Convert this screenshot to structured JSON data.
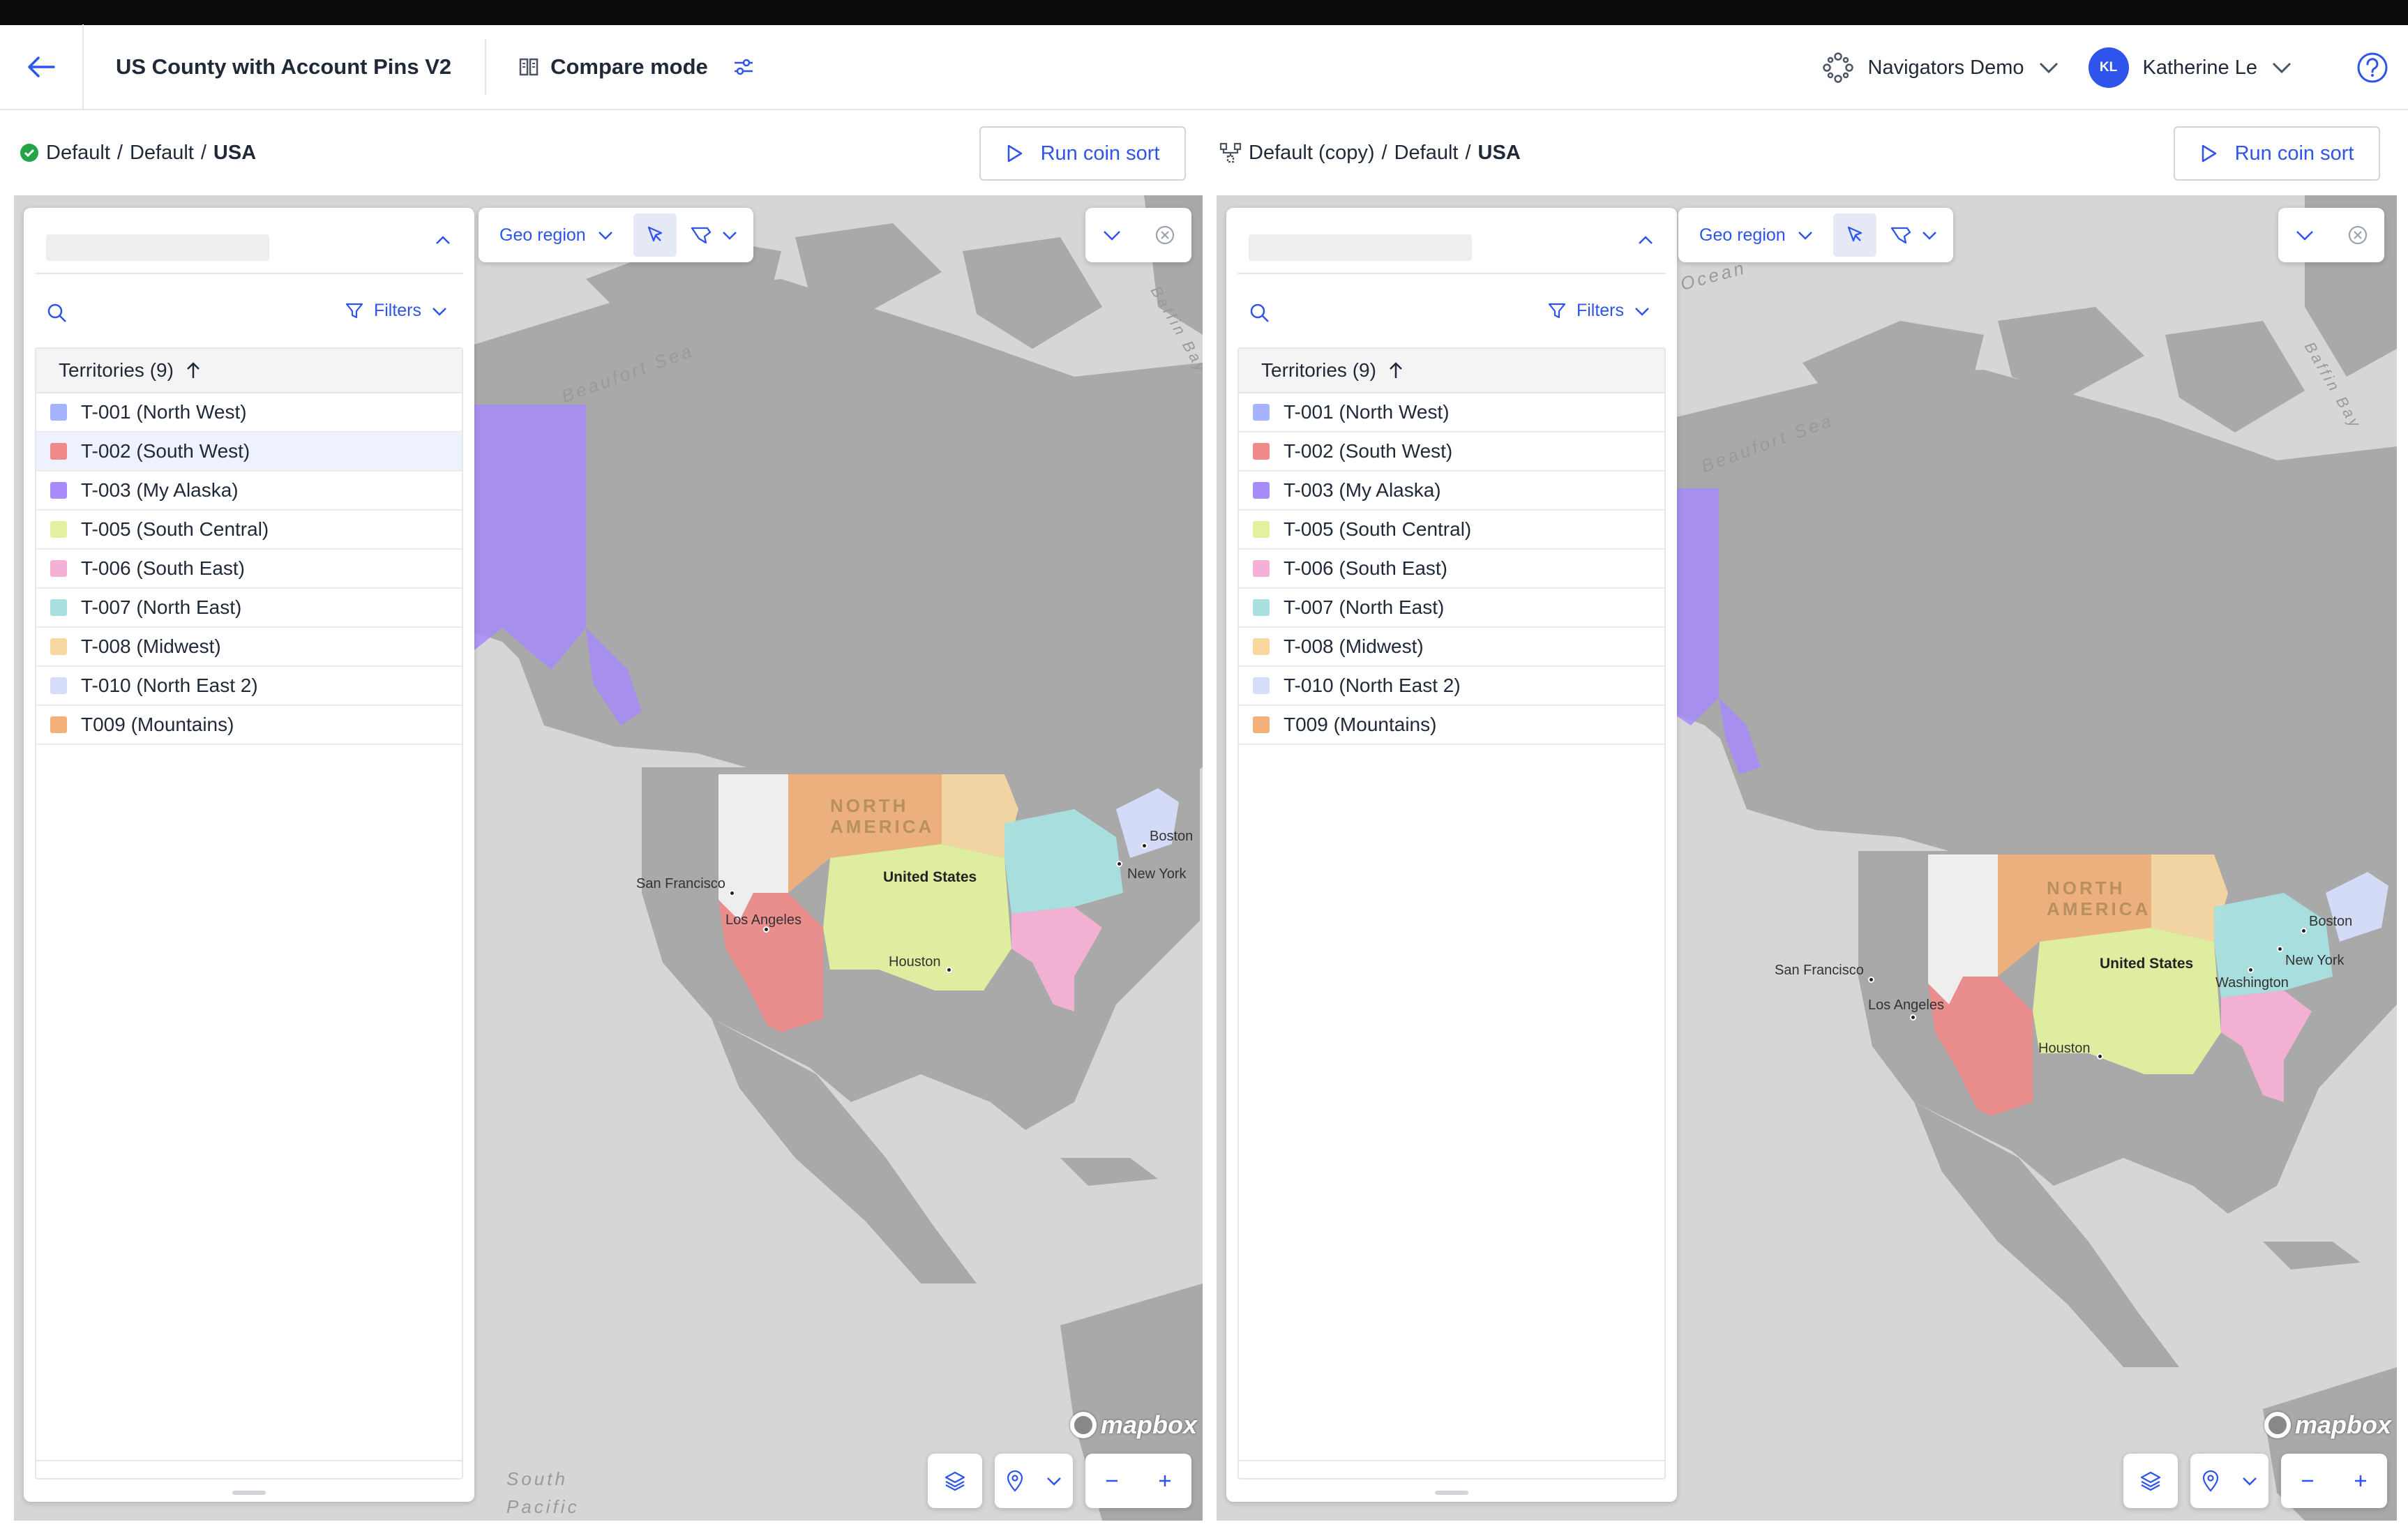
{
  "header": {
    "title": "US County with Account Pins V2",
    "compare_label": "Compare mode",
    "org_name": "Navigators Demo",
    "user_initials": "KL",
    "user_name": "Katherine Le"
  },
  "left": {
    "breadcrumb": {
      "a": "Default",
      "b": "Default",
      "c": "USA"
    },
    "run_button": "Run coin sort"
  },
  "right": {
    "breadcrumb": {
      "a": "Default (copy)",
      "b": "Default",
      "c": "USA"
    },
    "run_button": "Run coin sort"
  },
  "panel": {
    "filters_label": "Filters",
    "table_header": "Territories (9)",
    "territories": [
      {
        "label": "T-001 (North West)",
        "color": "#a5b4fc"
      },
      {
        "label": "T-002 (South West)",
        "color": "#f08a8a"
      },
      {
        "label": "T-003 (My Alaska)",
        "color": "#a78bfa"
      },
      {
        "label": "T-005 (South Central)",
        "color": "#e2f0a0"
      },
      {
        "label": "T-006 (South East)",
        "color": "#f5b0d5"
      },
      {
        "label": "T-007 (North East)",
        "color": "#a8e0e0"
      },
      {
        "label": "T-008 (Midwest)",
        "color": "#f8d8a0"
      },
      {
        "label": "T-010 (North East 2)",
        "color": "#d5ddfb"
      },
      {
        "label": "T009 (Mountains)",
        "color": "#f3b079"
      }
    ]
  },
  "toolbar": {
    "geo_label": "Geo region"
  },
  "map_labels": {
    "beaufort": "Beaufort Sea",
    "baffin": "Baffin Bay",
    "north_america": "NORTH AMERICA",
    "united_states": "United States",
    "san_francisco": "San Francisco",
    "los_angeles": "Los Angeles",
    "houston": "Houston",
    "boston": "Boston",
    "new_york": "New York",
    "washington": "Washington",
    "south_pacific": "South Pacific",
    "ocean": "Ocean",
    "mapbox": "mapbox"
  },
  "colors": {
    "accent": "#2f54eb",
    "success": "#22a447"
  }
}
